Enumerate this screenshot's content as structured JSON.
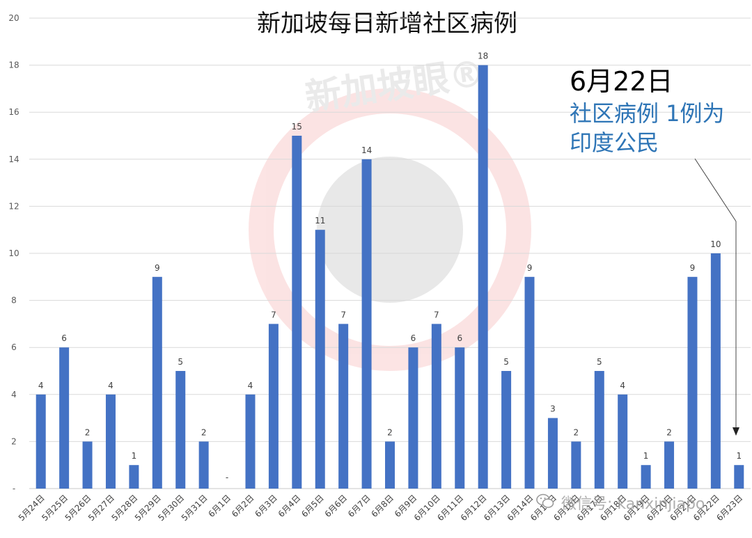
{
  "chart_data": {
    "type": "bar",
    "title": "新加坡每日新增社区病例",
    "categories": [
      "5月24日",
      "5月25日",
      "5月26日",
      "5月27日",
      "5月28日",
      "5月29日",
      "5月30日",
      "5月31日",
      "6月1日",
      "6月2日",
      "6月3日",
      "6月4日",
      "6月5日",
      "6月6日",
      "6月7日",
      "6月8日",
      "6月9日",
      "6月10日",
      "6月11日",
      "6月12日",
      "6月13日",
      "6月14日",
      "6月15日",
      "6月16日",
      "6月17日",
      "6月18日",
      "6月19日",
      "6月20日",
      "6月21日",
      "6月22日",
      "6月23日"
    ],
    "values": [
      4,
      6,
      2,
      4,
      1,
      9,
      5,
      2,
      0,
      4,
      7,
      15,
      11,
      7,
      14,
      2,
      6,
      7,
      6,
      18,
      5,
      9,
      3,
      2,
      5,
      4,
      1,
      2,
      9,
      10,
      1
    ],
    "data_labels": [
      "4",
      "6",
      "2",
      "4",
      "1",
      "9",
      "5",
      "2",
      "-",
      "4",
      "7",
      "15",
      "11",
      "7",
      "14",
      "2",
      "6",
      "7",
      "6",
      "18",
      "5",
      "9",
      "3",
      "2",
      "5",
      "4",
      "1",
      "2",
      "9",
      "10",
      "1"
    ],
    "y_ticks": [
      "-",
      "2",
      "4",
      "6",
      "8",
      "10",
      "12",
      "14",
      "16",
      "18",
      "20"
    ],
    "ylim": [
      0,
      20
    ],
    "grid": true,
    "bar_color": "#4472c4",
    "annotation": {
      "date": "6月22日",
      "line1": "社区病例 1例为",
      "line2": "印度公民",
      "text_color": "#2e75b6"
    }
  },
  "watermark": {
    "logo_text": "新加坡眼®",
    "account_text": "微信号: kanxinjiapo"
  }
}
